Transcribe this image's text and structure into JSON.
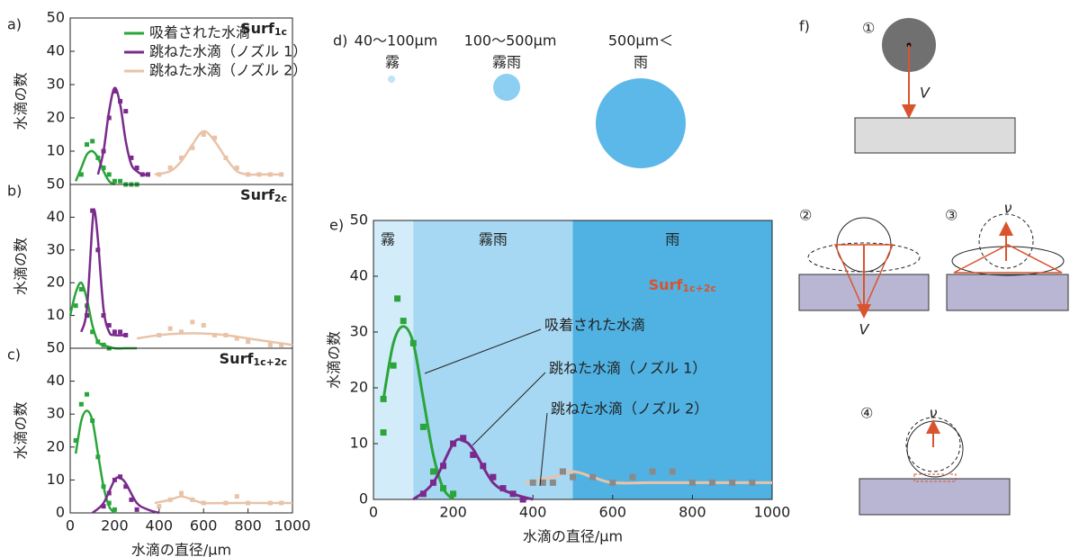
{
  "chart_data": [
    {
      "type": "scatter",
      "panel_label": "a)",
      "title": "Surf",
      "title_sub": "1c",
      "ylabel": "水滴の数",
      "xlim": [
        0,
        1000
      ],
      "ylim": [
        0,
        50
      ],
      "yticks": [
        10,
        20,
        30,
        40,
        50
      ],
      "series": [
        {
          "name": "吸着された水滴",
          "color": "#2aa53a",
          "points": {
            "x": [
              50,
              75,
              100,
              125,
              150,
              175,
              200,
              225,
              250,
              275,
              300
            ],
            "values": [
              3,
              12,
              13,
              8,
              5,
              3,
              1,
              1,
              0,
              0,
              0
            ]
          },
          "fit": {
            "x": [
              25,
              50,
              75,
              100,
              125,
              150,
              175,
              200
            ],
            "values": [
              1,
              5,
              9,
              10,
              8,
              4,
              1,
              0
            ]
          }
        },
        {
          "name": "跳ねた水滴（ノズル 1）",
          "color": "#7a2a8c",
          "points": {
            "x": [
              150,
              175,
              200,
              225,
              250,
              275,
              300,
              325,
              350
            ],
            "values": [
              10,
              20,
              28,
              25,
              22,
              8,
              5,
              3,
              3
            ]
          },
          "fit": {
            "x": [
              125,
              150,
              175,
              200,
              225,
              250,
              275,
              300,
              325,
              350
            ],
            "values": [
              3,
              10,
              22,
              29,
              24,
              13,
              6,
              4,
              3,
              3
            ]
          }
        },
        {
          "name": "跳ねた水滴（ノズル 2）",
          "color": "#e8c3a8",
          "points": {
            "x": [
              400,
              450,
              500,
              550,
              600,
              650,
              700,
              750,
              800,
              850,
              900,
              950
            ],
            "values": [
              3,
              5,
              8,
              11,
              15,
              14,
              8,
              5,
              3,
              3,
              3,
              3
            ]
          },
          "fit": {
            "x": [
              380,
              450,
              500,
              550,
              600,
              650,
              700,
              750,
              800,
              850,
              900,
              950
            ],
            "values": [
              3,
              4,
              7,
              12,
              16,
              13,
              8,
              4,
              3,
              3,
              3,
              3
            ]
          }
        }
      ]
    },
    {
      "type": "scatter",
      "panel_label": "b)",
      "title": "Surf",
      "title_sub": "2c",
      "ylabel": "水滴の数",
      "xlim": [
        0,
        1000
      ],
      "ylim": [
        0,
        50
      ],
      "yticks": [
        10,
        20,
        30,
        40,
        50
      ],
      "series": [
        {
          "color": "#2aa53a",
          "points": {
            "x": [
              25,
              50,
              75,
              100,
              125,
              150,
              175
            ],
            "values": [
              13,
              18,
              13,
              5,
              2,
              1,
              0
            ]
          },
          "fit": {
            "x": [
              0,
              25,
              50,
              75,
              100,
              125,
              150,
              200,
              250,
              300
            ],
            "values": [
              10,
              17,
              20,
              15,
              7,
              2,
              1,
              0,
              0,
              0
            ]
          }
        },
        {
          "color": "#7a2a8c",
          "points": {
            "x": [
              75,
              100,
              125,
              150,
              175,
              200,
              225,
              250
            ],
            "values": [
              10,
              42,
              30,
              10,
              7,
              5,
              5,
              4
            ]
          },
          "fit": {
            "x": [
              50,
              75,
              100,
              110,
              125,
              150,
              175,
              200,
              250
            ],
            "values": [
              5,
              12,
              38,
              42,
              33,
              12,
              5,
              4,
              4
            ]
          }
        },
        {
          "color": "#e8c3a8",
          "points": {
            "x": [
              400,
              450,
              500,
              550,
              600,
              650,
              700,
              750,
              800,
              900,
              950
            ],
            "values": [
              4,
              6,
              5,
              8,
              7,
              4,
              4,
              3,
              2,
              1,
              1
            ]
          },
          "fit": {
            "x": [
              300,
              400,
              500,
              600,
              700,
              800,
              900,
              1000
            ],
            "values": [
              3,
              4,
              4.5,
              4.5,
              4,
              3,
              2,
              1
            ]
          }
        }
      ]
    },
    {
      "type": "scatter",
      "panel_label": "c)",
      "title": "Surf",
      "title_sub": "1c+2c",
      "ylabel": "水滴の数",
      "xlabel": "水滴の直径/μm",
      "xlim": [
        0,
        1000
      ],
      "ylim": [
        0,
        50
      ],
      "yticks": [
        0,
        10,
        20,
        30,
        40,
        50
      ],
      "xticks": [
        0,
        200,
        400,
        600,
        800,
        1000
      ],
      "series": [
        {
          "color": "#2aa53a",
          "points": {
            "x": [
              25,
              50,
              75,
              100,
              125,
              150,
              175,
              200
            ],
            "values": [
              22,
              33,
              36,
              28,
              17,
              8,
              3,
              1
            ]
          },
          "fit": {
            "x": [
              25,
              50,
              75,
              100,
              125,
              150,
              175,
              200
            ],
            "values": [
              18,
              28,
              31,
              28,
              18,
              8,
              2,
              0
            ]
          }
        },
        {
          "color": "#7a2a8c",
          "points": {
            "x": [
              150,
              175,
              200,
              225,
              250,
              275,
              300
            ],
            "values": [
              2,
              6,
              10,
              11,
              8,
              4,
              1
            ]
          },
          "fit": {
            "x": [
              100,
              150,
              200,
              225,
              250,
              300,
              350,
              400
            ],
            "values": [
              0,
              3,
              10,
              10.5,
              9,
              3,
              1,
              0
            ]
          }
        },
        {
          "color": "#e8c3a8",
          "points": {
            "x": [
              400,
              450,
              500,
              550,
              600,
              700,
              750,
              800,
              900,
              950
            ],
            "values": [
              2,
              4,
              6,
              4,
              3,
              3,
              5,
              3,
              3,
              3
            ]
          },
          "fit": {
            "x": [
              380,
              450,
              500,
              550,
              600,
              700,
              800,
              900,
              1000
            ],
            "values": [
              3,
              4,
              5,
              4,
              3,
              3,
              3,
              3,
              3
            ]
          }
        }
      ]
    },
    {
      "type": "scatter",
      "panel_label": "e)",
      "title": "Surf",
      "title_sub": "1c+2c",
      "title_color": "#d9542c",
      "ylabel": "水滴の数",
      "xlabel": "水滴の直径/μm",
      "xlim": [
        0,
        1000
      ],
      "ylim": [
        0,
        50
      ],
      "yticks": [
        0,
        10,
        20,
        30,
        40,
        50
      ],
      "xticks": [
        0,
        200,
        400,
        600,
        800,
        1000
      ],
      "bands": [
        {
          "from": 0,
          "to": 100,
          "label": "霧",
          "color": "#d3ecfa"
        },
        {
          "from": 100,
          "to": 500,
          "label": "霧雨",
          "color": "#a6d8f3"
        },
        {
          "from": 500,
          "to": 1000,
          "label": "雨",
          "color": "#4fb2e3"
        }
      ],
      "annotations": [
        "吸着された水滴",
        "跳ねた水滴（ノズル 1）",
        "跳ねた水滴（ノズル 2）"
      ],
      "series": [
        {
          "color": "#2aa53a",
          "points": {
            "x": [
              25,
              25,
              50,
              60,
              75,
              100,
              125,
              150,
              175,
              200
            ],
            "values": [
              12,
              18,
              24,
              36,
              32,
              28,
              13,
              5,
              2,
              1
            ]
          },
          "fit": {
            "x": [
              25,
              50,
              75,
              100,
              125,
              150,
              175,
              200
            ],
            "values": [
              18,
              28,
              31,
              28,
              18,
              8,
              2,
              0
            ]
          }
        },
        {
          "color": "#7a2a8c",
          "points": {
            "x": [
              125,
              150,
              175,
              200,
              225,
              250,
              275,
              300,
              325,
              350,
              375
            ],
            "values": [
              1,
              3,
              6,
              10,
              11,
              8,
              6,
              4,
              2,
              1,
              0
            ]
          },
          "fit": {
            "x": [
              100,
              150,
              200,
              225,
              250,
              300,
              350,
              400
            ],
            "values": [
              0,
              3,
              10,
              10.5,
              9,
              3,
              1,
              0
            ]
          }
        },
        {
          "color": "#8a8a8a",
          "line_color": "#e8c3a8",
          "points": {
            "x": [
              400,
              425,
              450,
              475,
              500,
              550,
              600,
              650,
              700,
              750,
              800,
              850,
              900,
              950
            ],
            "values": [
              3,
              3,
              3,
              5,
              4,
              4,
              3,
              4,
              5,
              5,
              3,
              3,
              3,
              3
            ]
          },
          "fit": {
            "x": [
              380,
              450,
              500,
              550,
              600,
              700,
              800,
              900,
              1000
            ],
            "values": [
              3,
              4,
              5,
              4,
              3,
              3,
              3,
              3,
              3
            ]
          }
        }
      ]
    }
  ],
  "panel_d": {
    "label": "d)",
    "sizes": [
      "40〜100μm",
      "100〜500μm",
      "500μm＜"
    ],
    "names": [
      "霧",
      "霧雨",
      "雨"
    ]
  },
  "panel_f": {
    "label": "f)",
    "steps": [
      "①",
      "②",
      "③",
      "④"
    ],
    "velocity_labels": [
      "V",
      "V",
      "ν",
      "ν"
    ]
  }
}
